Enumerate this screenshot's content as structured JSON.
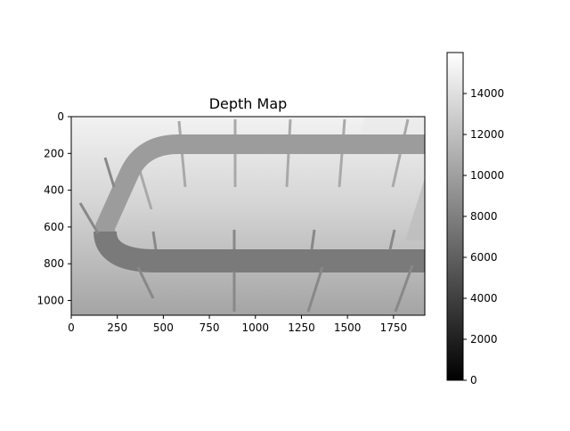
{
  "chart_data": {
    "type": "heatmap",
    "title": "Depth Map",
    "colormap": "gray",
    "xlim": [
      0,
      1920
    ],
    "ylim": [
      1080,
      0
    ],
    "x_ticks": [
      0,
      250,
      500,
      750,
      1000,
      1250,
      1500,
      1750
    ],
    "y_ticks": [
      0,
      200,
      400,
      600,
      800,
      1000
    ],
    "colorbar": {
      "range": [
        0,
        16000
      ],
      "ticks": [
        0,
        2000,
        4000,
        6000,
        8000,
        10000,
        12000,
        14000
      ]
    }
  }
}
